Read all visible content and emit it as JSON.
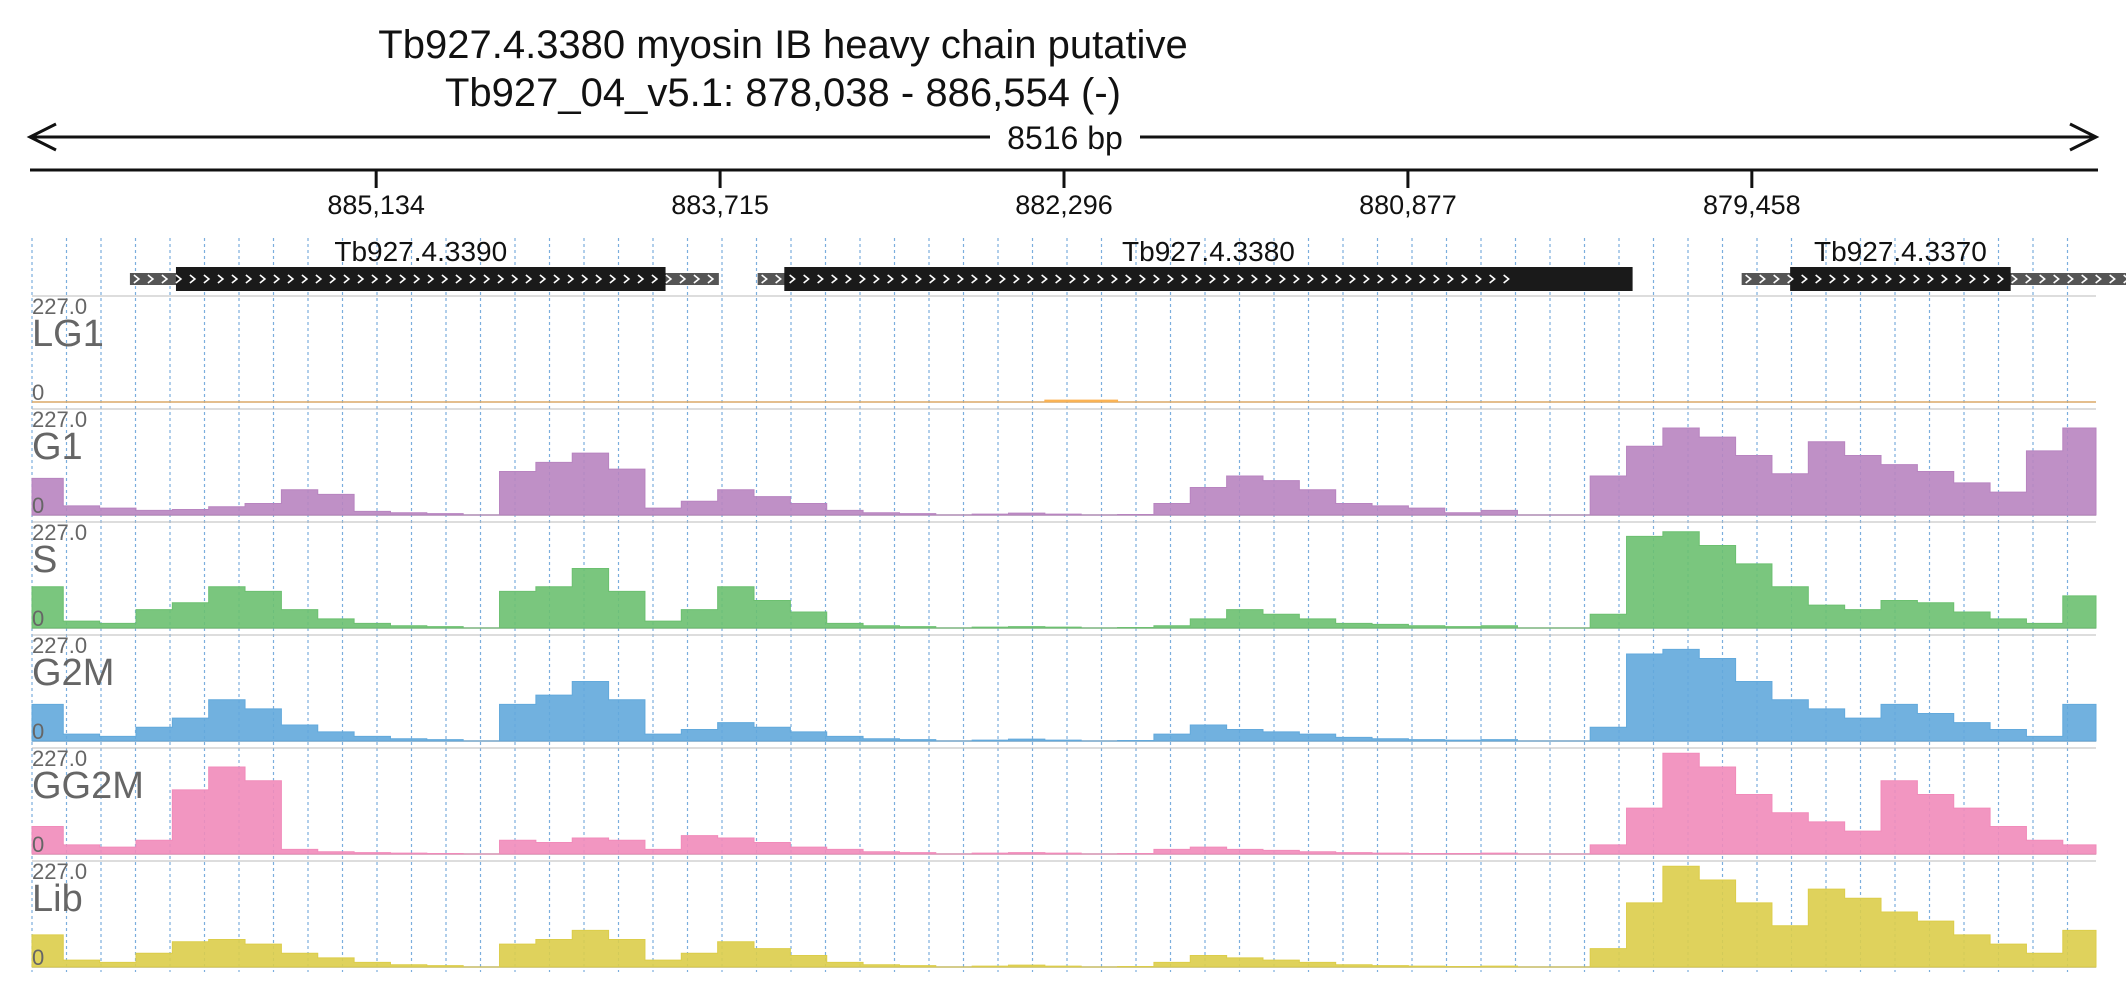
{
  "chart_data": {
    "type": "area",
    "title": "Tb927.4.3380  myosin IB heavy chain  putative",
    "subtitle": "Tb927_04_v5.1: 878,038 - 886,554 (-)",
    "span_label": "8516 bp",
    "region": {
      "chrom": "Tb927_04_v5.1",
      "start": 878038,
      "end": 886554,
      "strand": "-"
    },
    "xlim": [
      886554,
      878038
    ],
    "ticks": [
      {
        "value": 885134,
        "label": "885,134"
      },
      {
        "value": 883715,
        "label": "883,715"
      },
      {
        "value": 882296,
        "label": "882,296"
      },
      {
        "value": 880877,
        "label": "880,877"
      },
      {
        "value": 879458,
        "label": "879,458"
      }
    ],
    "genes": [
      {
        "name": "Tb927.4.3390",
        "start": 886150,
        "end": 883720,
        "cds_start": 885960,
        "cds_end": 883940,
        "strand": "-"
      },
      {
        "name": "Tb927.4.3380",
        "start": 883560,
        "end": 880440,
        "cds_start": 883450,
        "cds_end": 879950,
        "strand": "-"
      },
      {
        "name": "Tb927.4.3370",
        "start": 879500,
        "end": 877850,
        "cds_start": 879300,
        "cds_end": 878390,
        "strand": "-"
      }
    ],
    "ylim": [
      0,
      227.0
    ],
    "y_max_label": "227.0",
    "y_min_label": "0",
    "grid": true,
    "x": [
      886500,
      886350,
      886200,
      886050,
      885900,
      885750,
      885600,
      885450,
      885300,
      885150,
      885000,
      884850,
      884700,
      884550,
      884400,
      884250,
      884100,
      883950,
      883800,
      883650,
      883500,
      883350,
      883200,
      883050,
      882900,
      882750,
      882600,
      882450,
      882300,
      882150,
      882000,
      881850,
      881700,
      881550,
      881400,
      881250,
      881100,
      880950,
      880800,
      880650,
      880500,
      880350,
      880200,
      880050,
      879900,
      879750,
      879600,
      879450,
      879300,
      879150,
      879000,
      878850,
      878700,
      878550,
      878400,
      878250,
      878100
    ],
    "series": [
      {
        "name": "LG1",
        "color": "#fbb04e",
        "values": [
          0,
          0,
          0,
          0,
          0,
          0,
          0,
          0,
          0,
          0,
          0,
          0,
          0,
          0,
          0,
          0,
          0,
          0,
          0,
          0,
          0,
          0,
          0,
          0,
          0,
          0,
          0,
          0,
          4,
          4,
          0,
          0,
          0,
          0,
          0,
          0,
          0,
          0,
          0,
          0,
          0,
          0,
          0,
          0,
          0,
          0,
          0,
          0,
          0,
          0,
          0,
          0,
          0,
          0,
          0,
          0,
          0
        ]
      },
      {
        "name": "G1",
        "color": "#b884c0",
        "values": [
          80,
          20,
          15,
          10,
          12,
          18,
          25,
          55,
          45,
          8,
          5,
          3,
          0,
          95,
          115,
          135,
          100,
          15,
          30,
          55,
          40,
          25,
          10,
          5,
          3,
          0,
          2,
          4,
          2,
          0,
          1,
          25,
          60,
          85,
          75,
          55,
          25,
          20,
          15,
          5,
          10,
          0,
          0,
          85,
          150,
          190,
          170,
          130,
          90,
          160,
          130,
          110,
          95,
          70,
          50,
          140,
          190
        ]
      },
      {
        "name": "S",
        "color": "#6cc070",
        "values": [
          90,
          15,
          10,
          40,
          55,
          90,
          80,
          40,
          20,
          10,
          5,
          3,
          0,
          80,
          90,
          130,
          80,
          15,
          40,
          90,
          60,
          35,
          10,
          5,
          3,
          0,
          2,
          3,
          2,
          0,
          1,
          5,
          20,
          40,
          30,
          20,
          10,
          8,
          5,
          3,
          5,
          0,
          0,
          30,
          200,
          210,
          180,
          140,
          90,
          50,
          40,
          60,
          55,
          35,
          20,
          10,
          70
        ]
      },
      {
        "name": "G2M",
        "color": "#62a9dc",
        "values": [
          80,
          15,
          10,
          30,
          50,
          90,
          70,
          35,
          20,
          10,
          5,
          3,
          0,
          80,
          100,
          130,
          90,
          15,
          25,
          40,
          30,
          20,
          10,
          5,
          3,
          0,
          2,
          4,
          2,
          0,
          1,
          15,
          35,
          25,
          20,
          15,
          8,
          5,
          3,
          2,
          3,
          0,
          0,
          30,
          190,
          200,
          180,
          130,
          90,
          70,
          50,
          80,
          60,
          40,
          25,
          10,
          80
        ]
      },
      {
        "name": "GG2M",
        "color": "#f18bba",
        "values": [
          60,
          20,
          15,
          30,
          140,
          190,
          160,
          10,
          5,
          3,
          2,
          1,
          0,
          30,
          25,
          35,
          30,
          10,
          40,
          35,
          25,
          15,
          10,
          5,
          3,
          0,
          2,
          3,
          2,
          0,
          1,
          10,
          15,
          10,
          8,
          5,
          3,
          2,
          1,
          1,
          2,
          0,
          0,
          20,
          100,
          220,
          190,
          130,
          90,
          70,
          50,
          160,
          130,
          100,
          60,
          30,
          20
        ]
      },
      {
        "name": "Lib",
        "color": "#dccd4a",
        "values": [
          70,
          15,
          10,
          30,
          55,
          60,
          50,
          30,
          20,
          10,
          5,
          3,
          0,
          50,
          60,
          80,
          60,
          15,
          30,
          55,
          40,
          25,
          10,
          5,
          3,
          0,
          2,
          4,
          2,
          0,
          1,
          10,
          25,
          20,
          15,
          10,
          5,
          3,
          2,
          1,
          2,
          0,
          0,
          40,
          140,
          220,
          190,
          140,
          90,
          170,
          150,
          120,
          100,
          70,
          50,
          30,
          80
        ]
      }
    ]
  }
}
